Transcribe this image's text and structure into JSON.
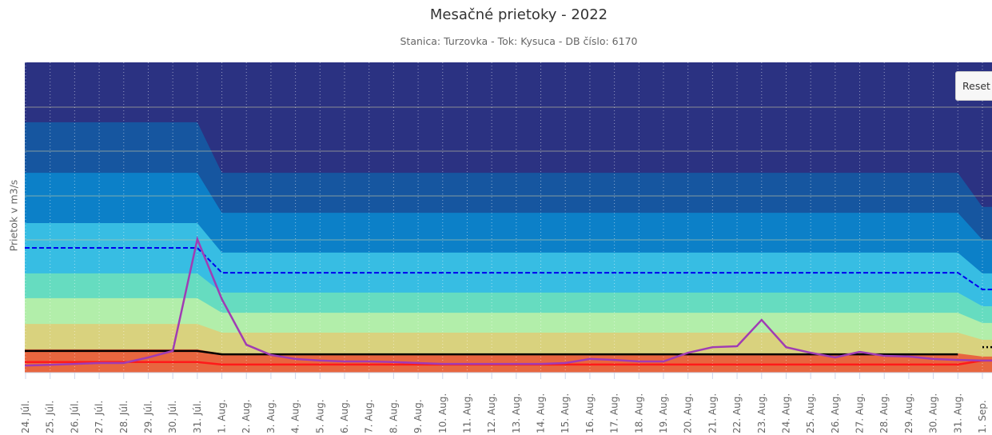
{
  "chart_data": {
    "type": "area",
    "title": "Mesačné prietoky - 2022",
    "subtitle": "Stanica: Turzovka - Tok: Kysuca - DB číslo: 6170",
    "ylabel": "Prietok v m3/s",
    "xlabel": "",
    "ylim": [
      0,
      100
    ],
    "categories": [
      "24. Júl.",
      "25. Júl.",
      "26. Júl.",
      "27. Júl.",
      "28. Júl.",
      "29. Júl.",
      "30. Júl.",
      "31. Júl.",
      "1. Aug.",
      "2. Aug.",
      "3. Aug.",
      "4. Aug.",
      "5. Aug.",
      "6. Aug.",
      "7. Aug.",
      "8. Aug.",
      "9. Aug.",
      "10. Aug.",
      "11. Aug.",
      "12. Aug.",
      "13. Aug.",
      "14. Aug.",
      "15. Aug.",
      "16. Aug.",
      "17. Aug.",
      "18. Aug.",
      "19. Aug.",
      "20. Aug.",
      "21. Aug.",
      "22. Aug.",
      "23. Aug.",
      "24. Aug.",
      "25. Aug.",
      "26. Aug.",
      "27. Aug.",
      "28. Aug.",
      "29. Aug.",
      "30. Aug.",
      "31. Aug.",
      "1. Sep."
    ],
    "bands": [
      {
        "color": "#e8663f",
        "jul": 7.5,
        "aug": 6.2,
        "sep": 5.2
      },
      {
        "color": "#d9d27e",
        "jul": 15.7,
        "aug": 12.9,
        "sep": 10.6
      },
      {
        "color": "#b2eeaa",
        "jul": 24.0,
        "aug": 19.3,
        "sep": 16.0
      },
      {
        "color": "#66dcc0",
        "jul": 32.0,
        "aug": 25.8,
        "sep": 21.4
      },
      {
        "color": "#37bde3",
        "jul": 48.2,
        "aug": 38.7,
        "sep": 32.0
      },
      {
        "color": "#0c80c8",
        "jul": 64.4,
        "aug": 51.5,
        "sep": 42.8
      },
      {
        "color": "#1656a0",
        "jul": 80.7,
        "aug": 64.4,
        "sep": 53.4
      },
      {
        "color": "#2b3282",
        "jul": 100,
        "aug": 100,
        "sep": 100
      }
    ],
    "series": [
      {
        "name": "dashed-blue",
        "color": "#0000ee",
        "jul": 40.2,
        "aug": 32.2,
        "sep": 26.8
      },
      {
        "name": "black",
        "color": "#000000",
        "jul": 7.0,
        "aug": 5.9,
        "sep": 8.2
      },
      {
        "name": "red",
        "color": "#ff1a1a",
        "jul": 3.4,
        "aug": 2.6,
        "sep": 3.9
      },
      {
        "name": "purple",
        "color": "#a03cb4",
        "values": [
          2.3,
          2.5,
          2.8,
          3.1,
          3.1,
          4.9,
          7.0,
          43.0,
          23.7,
          9.0,
          5.7,
          4.4,
          3.9,
          3.6,
          3.6,
          3.4,
          3.1,
          2.8,
          2.8,
          2.8,
          2.8,
          2.8,
          3.1,
          4.4,
          4.1,
          3.6,
          3.6,
          6.4,
          8.2,
          8.5,
          17.0,
          8.2,
          6.4,
          4.9,
          6.7,
          5.4,
          5.2,
          4.4,
          4.1,
          3.9
        ]
      }
    ]
  },
  "buttons": {
    "reset": "Reset"
  }
}
